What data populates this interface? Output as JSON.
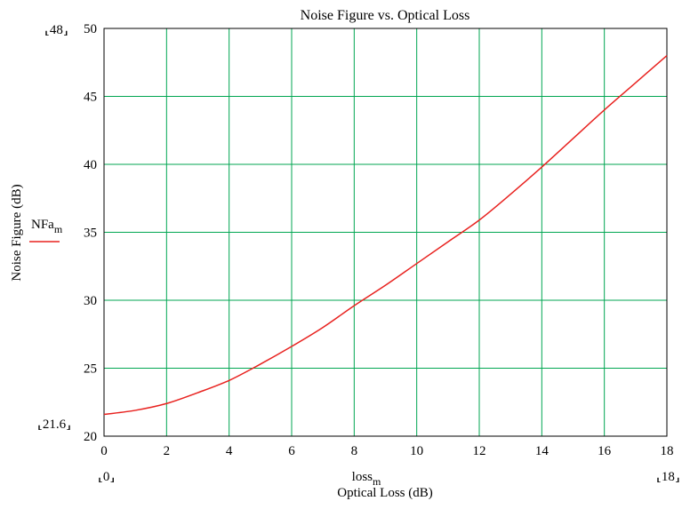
{
  "chart_data": {
    "type": "line",
    "title": "Noise Figure vs. Optical Loss",
    "xlabel": "Optical Loss (dB)",
    "ylabel": "Noise Figure (dB)",
    "x_var": "loss",
    "x_var_sub": "m",
    "y_var": "NFa",
    "y_var_sub": "m",
    "xlim": [
      0,
      18
    ],
    "ylim": [
      20,
      50
    ],
    "x_ticks": [
      "0",
      "2",
      "4",
      "6",
      "8",
      "10",
      "12",
      "14",
      "16",
      "18"
    ],
    "y_ticks": [
      "20",
      "25",
      "30",
      "35",
      "40",
      "45",
      "50"
    ],
    "corner_labels": {
      "x_min": "0",
      "x_max": "18",
      "y_min": "21.6",
      "y_max": "48"
    },
    "grid": true,
    "grid_color": "#00a651",
    "line_color": "#e8221f",
    "legend": "left",
    "series": [
      {
        "name": "NFam",
        "x": [
          0,
          1,
          2,
          3,
          4,
          5,
          6,
          7,
          8,
          9,
          10,
          11,
          12,
          13,
          14,
          15,
          16,
          17,
          18
        ],
        "values": [
          21.6,
          21.9,
          22.4,
          23.2,
          24.1,
          25.3,
          26.6,
          28.0,
          29.6,
          31.1,
          32.7,
          34.3,
          35.9,
          37.8,
          39.8,
          41.9,
          44.0,
          46.0,
          48.0
        ]
      }
    ]
  }
}
